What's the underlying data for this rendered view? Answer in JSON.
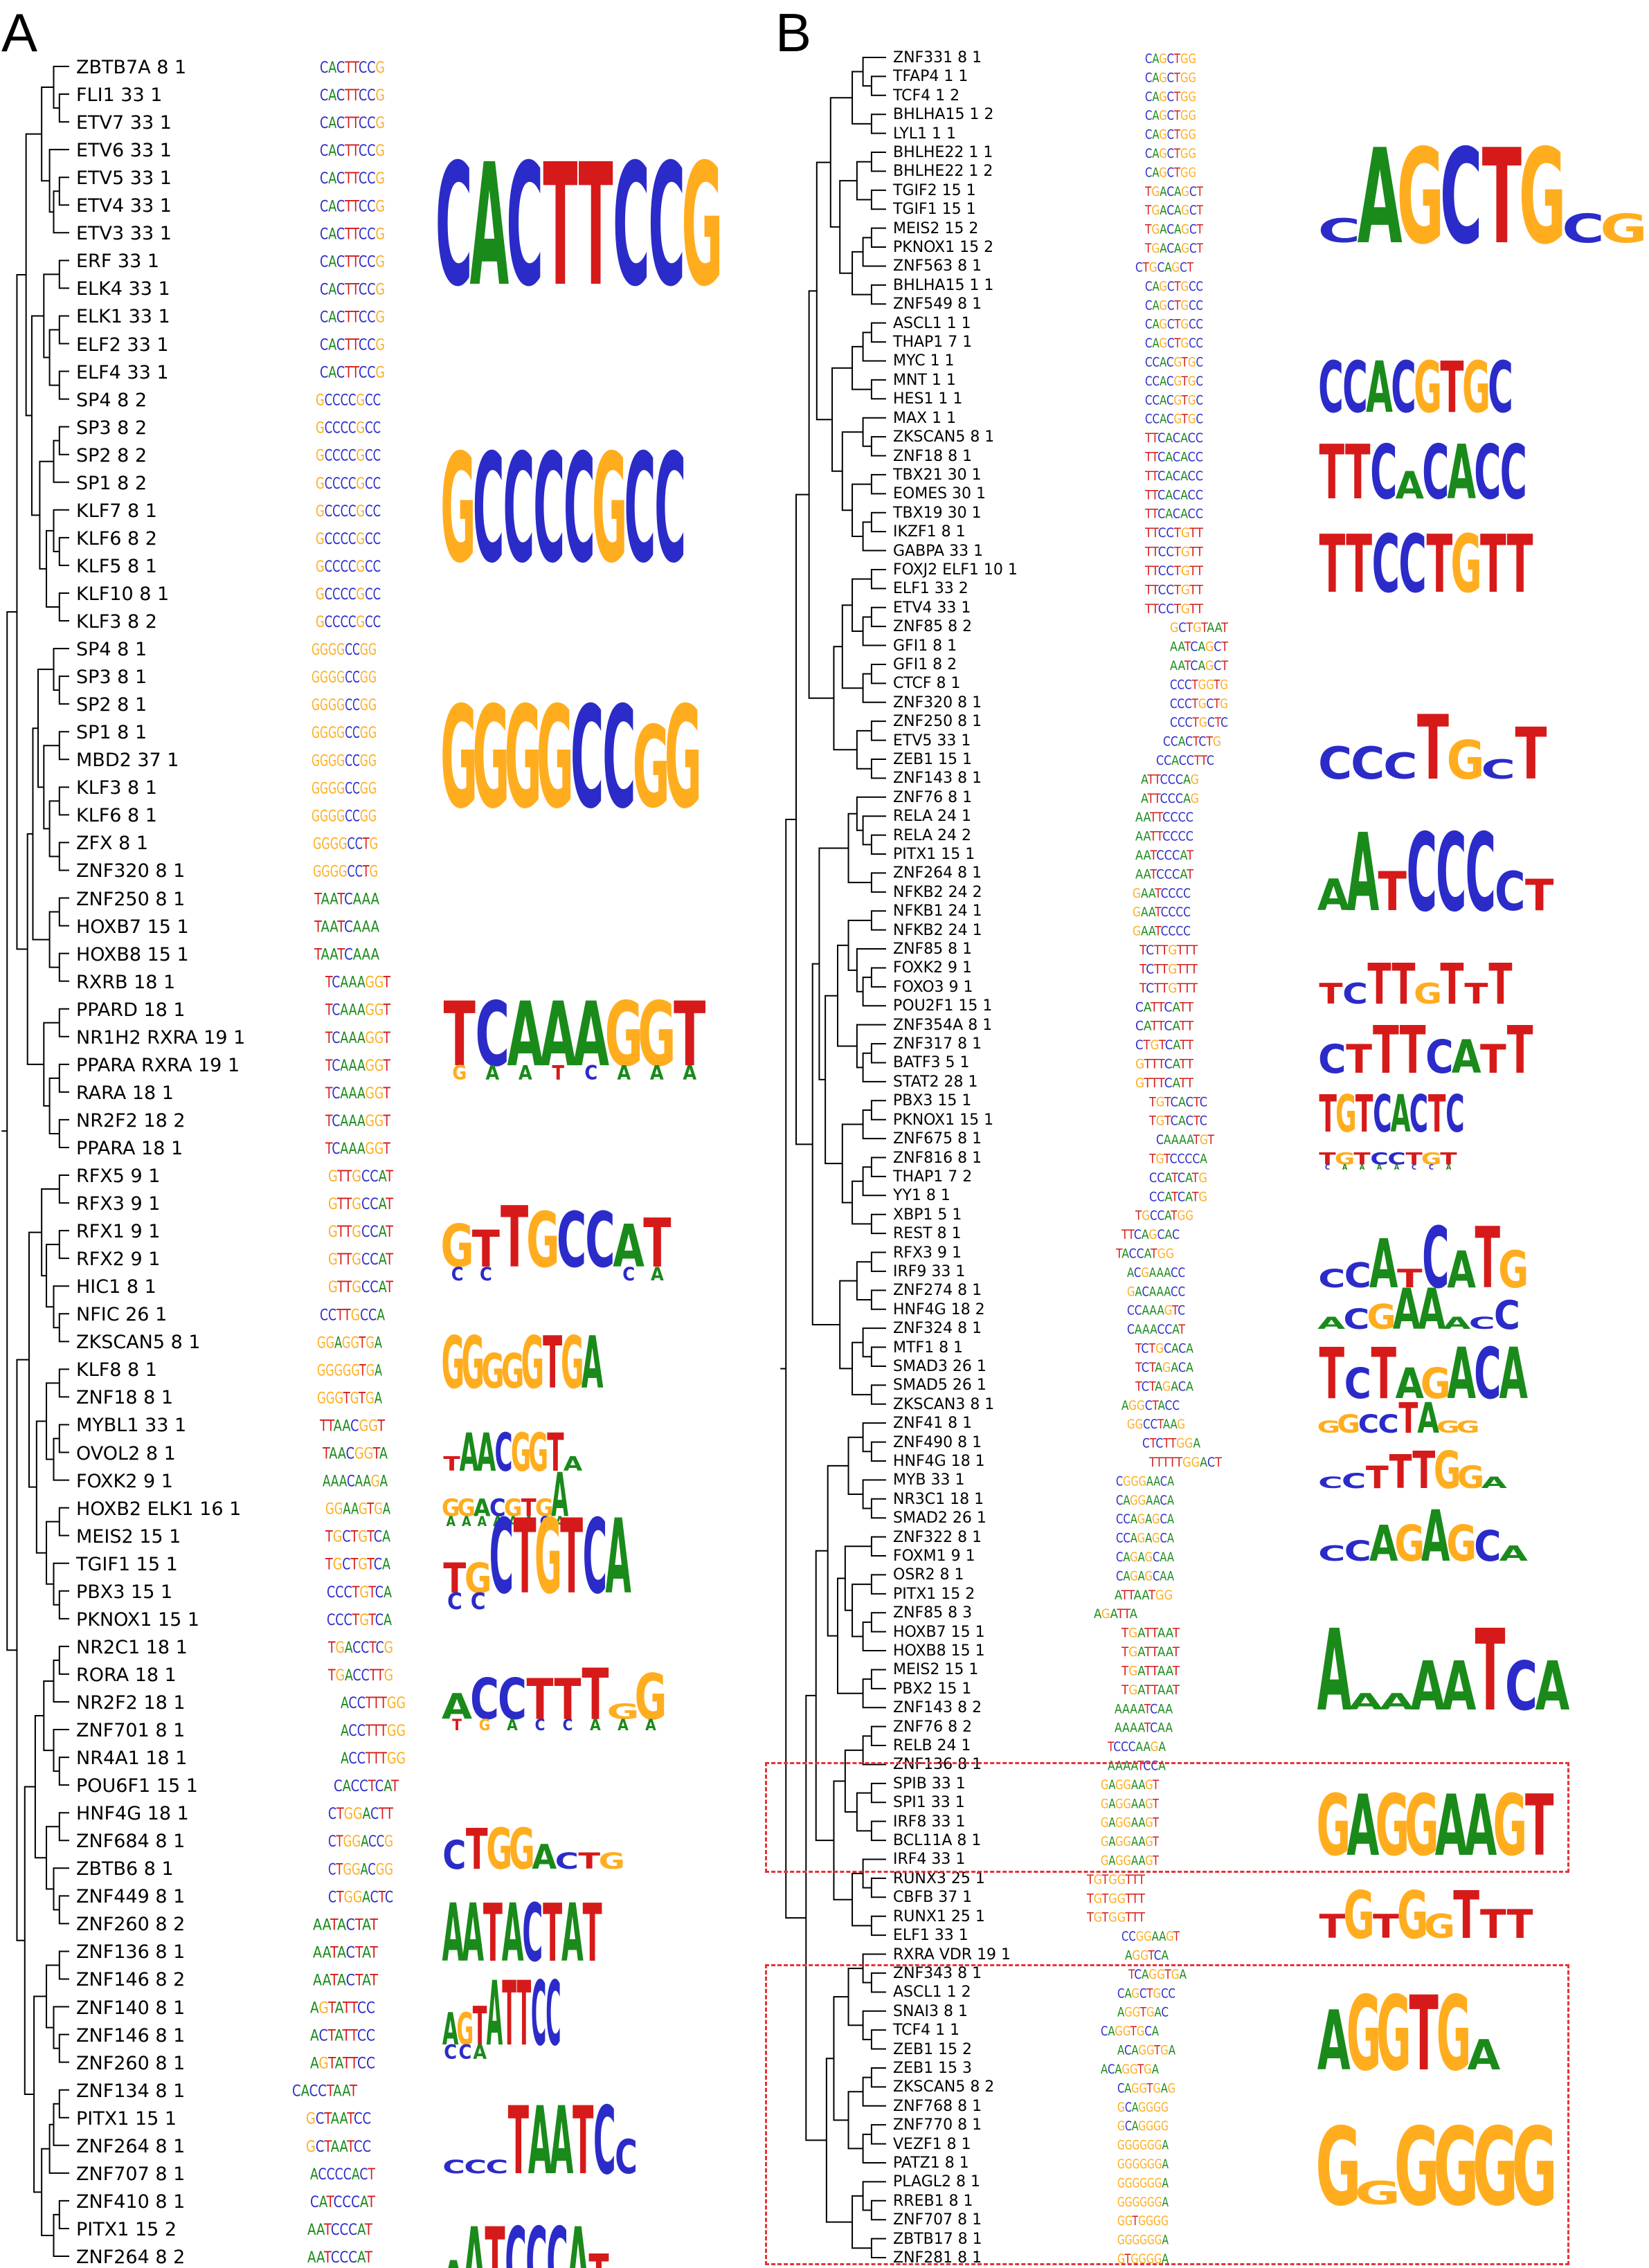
{
  "panels": {
    "A": {
      "letter": "A"
    },
    "B": {
      "letter": "B"
    }
  },
  "colors": {
    "A": "#1a8a1a",
    "C": "#2b2bc9",
    "G": "#ffad1f",
    "T": "#d61a1a",
    "highlight_box": "#e8313a"
  },
  "panel_a": {
    "labels": [
      "ZBTB7A 8 1",
      "FLI1 33 1",
      "ETV7 33 1",
      "ETV6 33 1",
      "ETV5 33 1",
      "ETV4 33 1",
      "ETV3 33 1",
      "ERF 33 1",
      "ELK4 33 1",
      "ELK1 33 1",
      "ELF2 33 1",
      "ELF4 33 1",
      "SP4 8 2",
      "SP3 8 2",
      "SP2 8 2",
      "SP1 8 2",
      "KLF7 8 1",
      "KLF6 8 2",
      "KLF5 8 1",
      "KLF10 8 1",
      "KLF3 8 2",
      "SP4 8 1",
      "SP3 8 1",
      "SP2 8 1",
      "SP1 8 1",
      "MBD2 37 1",
      "KLF3 8 1",
      "KLF6 8 1",
      "ZFX 8 1",
      "ZNF320 8 1",
      "ZNF250 8 1",
      "HOXB7 15 1",
      "HOXB8 15 1",
      "RXRB 18 1",
      "PPARD 18 1",
      "NR1H2 RXRA 19 1",
      "PPARA RXRA 19 1",
      "RARA 18 1",
      "NR2F2 18 2",
      "PPARA 18 1",
      "RFX5 9 1",
      "RFX3 9 1",
      "RFX1 9 1",
      "RFX2 9 1",
      "HIC1 8 1",
      "NFIC 26 1",
      "ZKSCAN5 8 1",
      "KLF8 8 1",
      "ZNF18 8 1",
      "MYBL1 33 1",
      "OVOL2 8 1",
      "FOXK2 9 1",
      "HOXB2 ELK1 16 1",
      "MEIS2 15 1",
      "TGIF1 15 1",
      "PBX3 15 1",
      "PKNOX1 15 1",
      "NR2C1 18 1",
      "RORA 18 1",
      "NR2F2 18 1",
      "ZNF701 8 1",
      "NR4A1 18 1",
      "POU6F1 15 1",
      "HNF4G 18 1",
      "ZNF684 8 1",
      "ZBTB6 8 1",
      "ZNF449 8 1",
      "ZNF260 8 2",
      "ZNF136 8 1",
      "ZNF146 8 2",
      "ZNF140 8 1",
      "ZNF146 8 1",
      "ZNF260 8 1",
      "ZNF134 8 1",
      "PITX1 15 1",
      "ZNF264 8 1",
      "ZNF707 8 1",
      "ZNF410 8 1",
      "PITX1 15 2",
      "ZNF264 8 2"
    ],
    "aligned_sequences": [
      "CACTTCCG",
      "CACTTCCG",
      "CACTTCCG",
      "CACTTCCG",
      "CACTTCCG",
      "CACTTCCG",
      "CACTTCCG",
      "CACTTCCG",
      "CACTTCCG",
      "CACTTCCG",
      "CACTTCCG",
      "CACTTCCG",
      "GCCCCGCC",
      "GCCCCGCC",
      "GCCCCGCC",
      "GCCCCGCC",
      "GCCCCGCC",
      "GCCCCGCC",
      "GCCCCGCC",
      "GCCCCGCC",
      "GCCCCGCC",
      "GGGGCCGG",
      "GGGGCCGG",
      "GGGGCCGG",
      "GGGGCCGG",
      "GGGGCCGG",
      "GGGGCCGG",
      "GGGGCCGG",
      "GGGGCCTG",
      "GGGGCCTG",
      "TAATCAAA",
      "TAATCAAA",
      "TAATCAAA",
      "TCAAAGGT",
      "TCAAAGGT",
      "TCAAAGGT",
      "TCAAAGGT",
      "TCAAAGGT",
      "TCAAAGGT",
      "TCAAAGGT",
      "GTTGCCAT",
      "GTTGCCAT",
      "GTTGCCAT",
      "GTTGCCAT",
      "GTTGCCAT",
      "CCTTGCCA",
      "GGAGGTGA",
      "GGGGGTGA",
      "GGGTGTGA",
      "TTAACGGT",
      "TAACGGTA",
      "AAACAAGA",
      "GGAAGTGA",
      "TGCTGTCA",
      "TGCTGTCA",
      "CCCTGTCA",
      "CCCTGTCA",
      "TGACCTCG",
      "TGACCTTG",
      "ACCTTTGG",
      "ACCTTTGG",
      "ACCTTTGG",
      "CACCTCAT",
      "CTGGACTT",
      "CTGGACCG",
      "CTGGACGG",
      "CTGGACTC",
      "AATACTAT",
      "AATACTAT",
      "AATACTAT",
      "AGTATTCC",
      "ACTATTCC",
      "AGTATTCC",
      "CACCTAAT",
      "GCTAATCC",
      "GCTAATCC",
      "ACCCCACT",
      "CATCCCAT",
      "AATCCCAT",
      "AATCCCAT"
    ],
    "logos": [
      "CACTTCCG",
      "GCCCCGCC",
      "GGGGCCGG",
      "TCAAAGGT / GAATCAAA",
      "GTTGCCAT",
      "GGGGGTGA",
      "TAACGGTA",
      "GGACGTGA / AAAAAACA",
      "TGCTGTCA",
      "ACCTTTGG / TGACCAAA",
      "CTGGACTG",
      "AATACTAT",
      "AGTATTCC",
      "CCTAATCC",
      "AATCCCAT"
    ]
  },
  "panel_b": {
    "labels": [
      "ZNF331 8 1",
      "TFAP4 1 1",
      "TCF4 1 2",
      "BHLHA15 1 2",
      "LYL1 1 1",
      "BHLHE22 1 1",
      "BHLHE22 1 2",
      "TGIF2 15 1",
      "TGIF1 15 1",
      "MEIS2 15 2",
      "PKNOX1 15 2",
      "ZNF563 8 1",
      "BHLHA15 1 1",
      "ZNF549 8 1",
      "ASCL1 1 1",
      "THAP1 7 1",
      "MYC 1 1",
      "MNT 1 1",
      "HES1 1 1",
      "MAX 1 1",
      "ZKSCAN5 8 1",
      "ZNF18 8 1",
      "TBX21 30 1",
      "EOMES 30 1",
      "TBX19 30 1",
      "IKZF1 8 1",
      "GABPA 33 1",
      "FOXJ2 ELF1 10 1",
      "ELF1 33 2",
      "ETV4 33 1",
      "ZNF85 8 2",
      "GFI1 8 1",
      "GFI1 8 2",
      "CTCF 8 1",
      "ZNF320 8 1",
      "ZNF250 8 1",
      "ETV5 33 1",
      "ZEB1 15 1",
      "ZNF143 8 1",
      "ZNF76 8 1",
      "RELA 24 1",
      "RELA 24 2",
      "PITX1 15 1",
      "ZNF264 8 1",
      "NFKB2 24 2",
      "NFKB1 24 1",
      "NFKB2 24 1",
      "ZNF85 8 1",
      "FOXK2 9 1",
      "FOXO3 9 1",
      "POU2F1 15 1",
      "ZNF354A 8 1",
      "ZNF317 8 1",
      "BATF3 5 1",
      "STAT2 28 1",
      "PBX3 15 1",
      "PKNOX1 15 1",
      "ZNF675 8 1",
      "ZNF816 8 1",
      "THAP1 7 2",
      "YY1 8 1",
      "XBP1 5 1",
      "REST 8 1",
      "RFX3 9 1",
      "IRF9 33 1",
      "ZNF274 8 1",
      "HNF4G 18 2",
      "ZNF324 8 1",
      "MTF1 8 1",
      "SMAD3 26 1",
      "SMAD5 26 1",
      "ZKSCAN3 8 1",
      "ZNF41 8 1",
      "ZNF490 8 1",
      "HNF4G 18 1",
      "MYB 33 1",
      "NR3C1 18 1",
      "SMAD2 26 1",
      "ZNF322 8 1",
      "FOXM1 9 1",
      "OSR2 8 1",
      "PITX1 15 2",
      "ZNF85 8 3",
      "HOXB7 15 1",
      "HOXB8 15 1",
      "MEIS2 15 1",
      "PBX2 15 1",
      "ZNF143 8 2",
      "ZNF76 8 2",
      "RELB 24 1",
      "ZNF136 8 1",
      "SPIB 33 1",
      "SPI1 33 1",
      "IRF8 33 1",
      "BCL11A 8 1",
      "IRF4 33 1",
      "RUNX3 25 1",
      "CBFB 37 1",
      "RUNX1 25 1",
      "ELF1 33 1",
      "RXRA VDR 19 1",
      "ZNF343 8 1",
      "ASCL1 1 2",
      "SNAI3 8 1",
      "TCF4 1 1",
      "ZEB1 15 2",
      "ZEB1 15 3",
      "ZKSCAN5 8 2",
      "ZNF768 8 1",
      "ZNF770 8 1",
      "VEZF1 8 1",
      "PATZ1 8 1",
      "PLAGL2 8 1",
      "RREB1 8 1",
      "ZNF707 8 1",
      "ZBTB17 8 1",
      "ZNF281 8 1"
    ],
    "logos": [
      "CAGCTGCG",
      "CCACGTGC",
      "TTCACACC",
      "TTCCTGTT",
      "CCCTGCT",
      "AATCCCCT",
      "TCTTGTTT",
      "CTTTCATT",
      "TGTCACTC",
      "TGTCCTGT / CAAAACCA",
      "CCATCATG",
      "ACGAAACC",
      "TCTAGACA",
      "GGCCTAGG",
      "CCTTTGGA",
      "CCAGAGCA",
      "AAAAATCA",
      "GAGGAAGT",
      "TGTGGTTT",
      "AGGTGA",
      "GGGGGG"
    ]
  }
}
